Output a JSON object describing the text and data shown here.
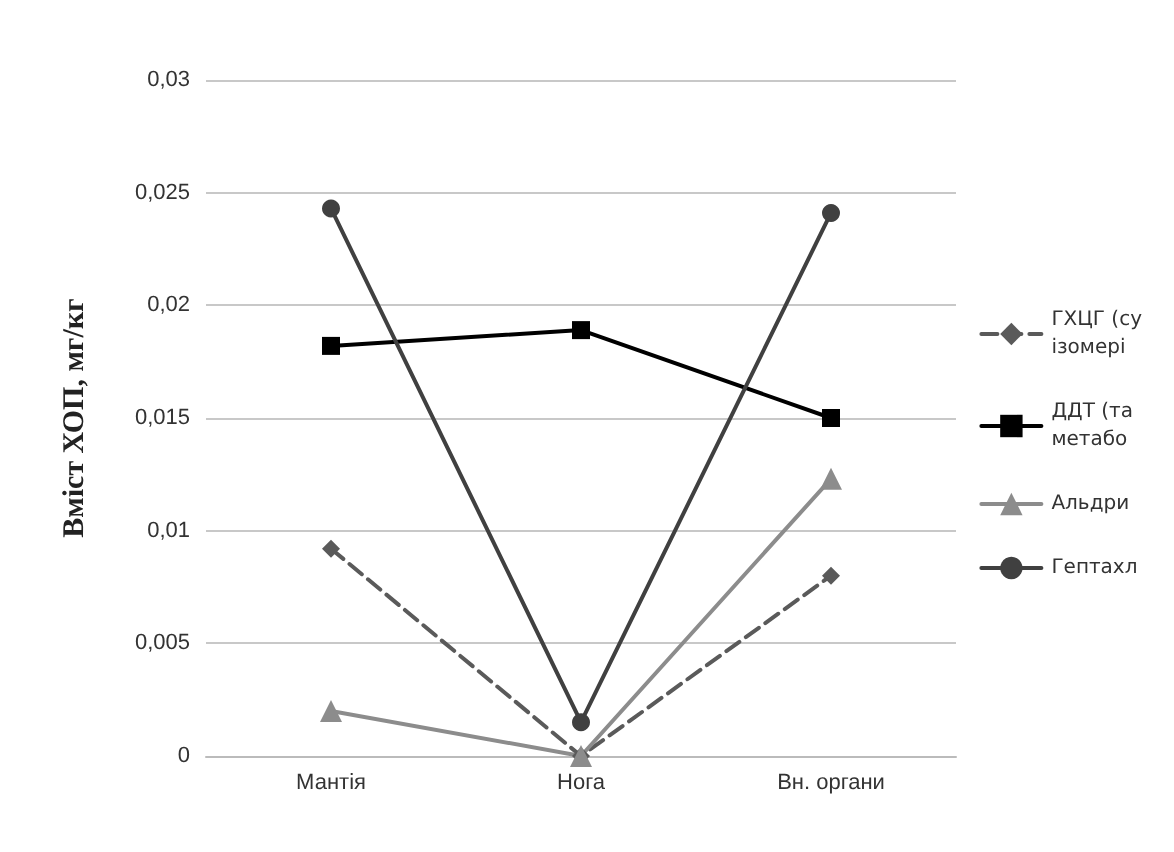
{
  "chart_data": {
    "type": "line",
    "ylabel": "Вміст ХОП, мг/кг",
    "categories": [
      "Мантія",
      "Нога",
      "Вн. органи"
    ],
    "series": [
      {
        "name": "ГХЦГ (су\nізомері",
        "color": "#5a5a5a",
        "marker": "diamond",
        "line_style": "dashed",
        "values": [
          0.0092,
          0,
          0.008
        ]
      },
      {
        "name": "ДДТ (та\nметабо",
        "color": "#000000",
        "marker": "square",
        "line_style": "solid",
        "values": [
          0.0182,
          0.0189,
          0.015
        ]
      },
      {
        "name": "Альдри",
        "color": "#8c8c8c",
        "marker": "triangle",
        "line_style": "solid",
        "values": [
          0.002,
          0,
          0.0123
        ]
      },
      {
        "name": "Гептахл",
        "color": "#404040",
        "marker": "circle",
        "line_style": "solid",
        "values": [
          0.0243,
          0.0015,
          0.0241
        ]
      }
    ],
    "ylim": [
      0,
      0.03
    ],
    "yticks": [
      {
        "value": 0,
        "label": "0"
      },
      {
        "value": 0.005,
        "label": "0,005"
      },
      {
        "value": 0.01,
        "label": "0,01"
      },
      {
        "value": 0.015,
        "label": "0,015"
      },
      {
        "value": 0.02,
        "label": "0,02"
      },
      {
        "value": 0.025,
        "label": "0,025"
      },
      {
        "value": 0.03,
        "label": "0,03"
      }
    ],
    "grid": "y",
    "legend": "right"
  }
}
